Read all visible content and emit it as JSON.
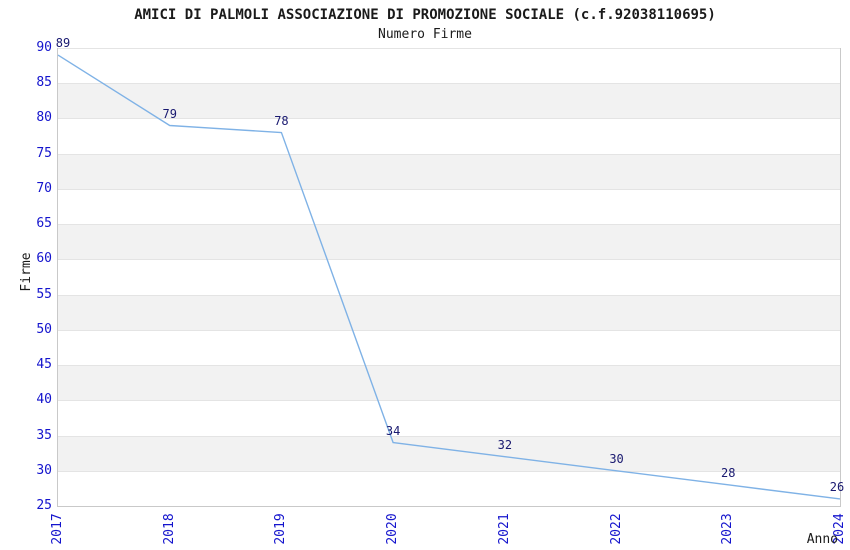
{
  "chart_data": {
    "type": "line",
    "title": "AMICI DI PALMOLI ASSOCIAZIONE DI PROMOZIONE SOCIALE (c.f.92038110695)",
    "subtitle": "Numero Firme",
    "xlabel": "Anno",
    "ylabel": "Firme",
    "x": [
      "2017",
      "2018",
      "2019",
      "2020",
      "2021",
      "2022",
      "2023",
      "2024"
    ],
    "series": [
      {
        "name": "Numero Firme",
        "values": [
          89,
          79,
          78,
          34,
          32,
          30,
          28,
          26
        ]
      }
    ],
    "ylim": [
      25,
      90
    ],
    "ytick_step": 5,
    "grid": "horizontal-bands",
    "legend": "none",
    "data_labels": [
      "89",
      "79",
      "78",
      "34",
      "32",
      "30",
      "28",
      "26"
    ],
    "colors": {
      "line": "#7fb2e6",
      "tick_label": "#1414cd",
      "data_label": "#191970",
      "band": "#f2f2f2",
      "gridline": "#e4e4e4",
      "spine": "#c9c9c9",
      "text": "#1a1a1a",
      "background": "#ffffff"
    }
  }
}
